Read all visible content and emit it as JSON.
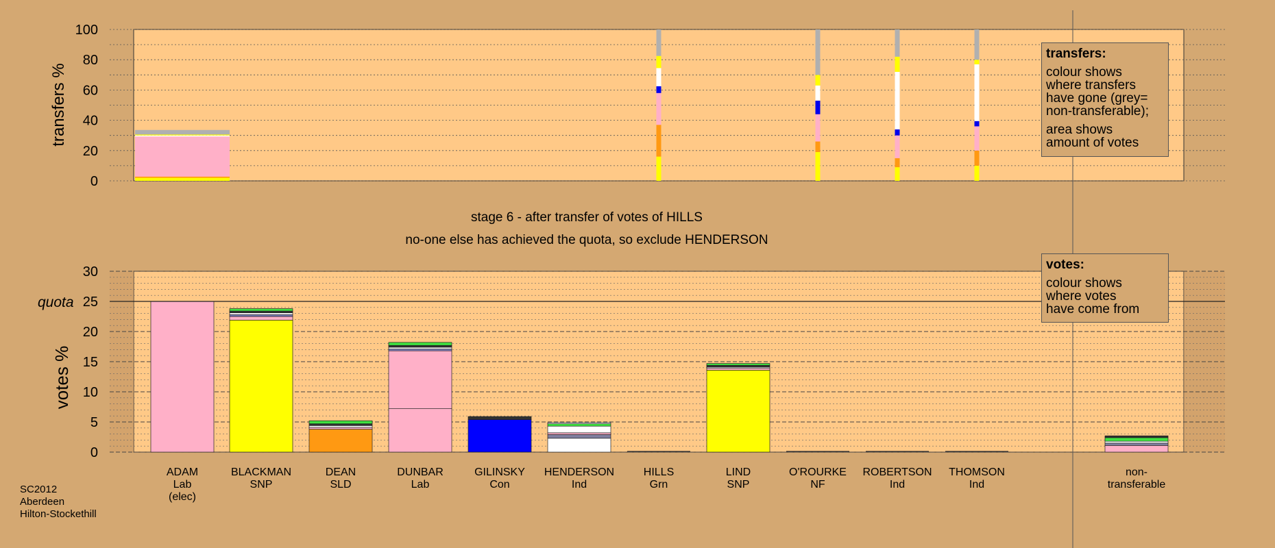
{
  "chart_data": [
    {
      "type": "bar",
      "name": "transfers",
      "ylabel": "transfers %",
      "ylim": [
        0,
        100
      ],
      "yticks": [
        0,
        20,
        40,
        60,
        80,
        100
      ],
      "grid": true,
      "note": "stacked bars; colour shows where transfers have gone",
      "bars": [
        {
          "candidate": "ADAM",
          "segments": [
            {
              "color": "#ffff00",
              "value": 2
            },
            {
              "color": "#ff9912",
              "value": 0.8
            },
            {
              "color": "#ffb0c8",
              "value": 26.5
            },
            {
              "color": "#ffffff",
              "value": 0.7
            },
            {
              "color": "#ffff00",
              "value": 0.6
            },
            {
              "color": "#b0b0b0",
              "value": 3
            }
          ]
        },
        {
          "candidate": "HILLS",
          "segments": [
            {
              "color": "#ffff00",
              "value": 16
            },
            {
              "color": "#ff9912",
              "value": 21
            },
            {
              "color": "#ffb0c8",
              "value": 21
            },
            {
              "color": "#0000ee",
              "value": 4.5
            },
            {
              "color": "#ffffff",
              "value": 12
            },
            {
              "color": "#ffff00",
              "value": 8
            },
            {
              "color": "#b0b0b0",
              "value": 17.5
            }
          ]
        },
        {
          "candidate": "O'ROURKE",
          "segments": [
            {
              "color": "#ffff00",
              "value": 19
            },
            {
              "color": "#ff9912",
              "value": 7
            },
            {
              "color": "#ffb0c8",
              "value": 18
            },
            {
              "color": "#0000ee",
              "value": 9
            },
            {
              "color": "#ffffff",
              "value": 10
            },
            {
              "color": "#ffff00",
              "value": 7
            },
            {
              "color": "#b0b0b0",
              "value": 30
            }
          ]
        },
        {
          "candidate": "ROBERTSON",
          "segments": [
            {
              "color": "#ffff00",
              "value": 9
            },
            {
              "color": "#ff9912",
              "value": 6
            },
            {
              "color": "#ffb0c8",
              "value": 15
            },
            {
              "color": "#0000ee",
              "value": 4
            },
            {
              "color": "#ffffff",
              "value": 38
            },
            {
              "color": "#ffff00",
              "value": 10
            },
            {
              "color": "#b0b0b0",
              "value": 18
            }
          ]
        },
        {
          "candidate": "THOMSON",
          "segments": [
            {
              "color": "#ffff00",
              "value": 10
            },
            {
              "color": "#ff9912",
              "value": 10
            },
            {
              "color": "#ffb0c8",
              "value": 16
            },
            {
              "color": "#0000ee",
              "value": 3.5
            },
            {
              "color": "#ffffff",
              "value": 37.5
            },
            {
              "color": "#ffff00",
              "value": 3
            },
            {
              "color": "#b0b0b0",
              "value": 20
            }
          ]
        }
      ]
    },
    {
      "type": "bar",
      "name": "votes",
      "ylabel": "votes %",
      "ylim": [
        0,
        30
      ],
      "yticks": [
        0,
        5,
        10,
        15,
        20,
        25,
        30
      ],
      "quota": 25,
      "quota_label": "quota",
      "grid": true,
      "note": "stacked bars; colour shows where votes have come from",
      "bars": [
        {
          "candidate": "ADAM",
          "segments": [
            {
              "color": "#ffb0c8",
              "value": 25
            }
          ]
        },
        {
          "candidate": "BLACKMAN",
          "segments": [
            {
              "color": "#ffff00",
              "value": 21.9
            },
            {
              "color": "#ffb0c8",
              "value": 0.6
            },
            {
              "color": "#8080c0",
              "value": 0.3
            },
            {
              "color": "#ffffff",
              "value": 0.3
            },
            {
              "color": "#303030",
              "value": 0.3
            },
            {
              "color": "#40e040",
              "value": 0.4
            }
          ]
        },
        {
          "candidate": "DEAN",
          "segments": [
            {
              "color": "#ff9912",
              "value": 3.8
            },
            {
              "color": "#ffb0c8",
              "value": 0.3
            },
            {
              "color": "#ffffff",
              "value": 0.3
            },
            {
              "color": "#303030",
              "value": 0.3
            },
            {
              "color": "#40e040",
              "value": 0.5
            }
          ]
        },
        {
          "candidate": "DUNBAR",
          "segments": [
            {
              "color": "#ffb0c8",
              "value": 7.2
            },
            {
              "color": "#ffb0c8",
              "value": 9.6
            },
            {
              "color": "#8080c0",
              "value": 0.3
            },
            {
              "color": "#ffffff",
              "value": 0.3
            },
            {
              "color": "#303030",
              "value": 0.3
            },
            {
              "color": "#40e040",
              "value": 0.5
            }
          ]
        },
        {
          "candidate": "GILINSKY",
          "segments": [
            {
              "color": "#0000ff",
              "value": 5.4
            },
            {
              "color": "#303030",
              "value": 0.5
            }
          ]
        },
        {
          "candidate": "HENDERSON",
          "segments": [
            {
              "color": "#ffffff",
              "value": 2.3
            },
            {
              "color": "#8080a0",
              "value": 0.6
            },
            {
              "color": "#ffb0c8",
              "value": 0.3
            },
            {
              "color": "#ffffff",
              "value": 1.1
            },
            {
              "color": "#40e040",
              "value": 0.4
            },
            {
              "color": "#ffffff",
              "value": 0.2
            }
          ]
        },
        {
          "candidate": "HILLS",
          "segments": []
        },
        {
          "candidate": "LIND",
          "segments": [
            {
              "color": "#ffff00",
              "value": 13.6
            },
            {
              "color": "#ffb0c8",
              "value": 0.3
            },
            {
              "color": "#ffffff",
              "value": 0.2
            },
            {
              "color": "#303030",
              "value": 0.3
            },
            {
              "color": "#40e040",
              "value": 0.3
            }
          ]
        },
        {
          "candidate": "O'ROURKE",
          "segments": []
        },
        {
          "candidate": "ROBERTSON",
          "segments": []
        },
        {
          "candidate": "THOMSON",
          "segments": []
        },
        {
          "candidate": "non-transferable",
          "segments": [
            {
              "color": "#ffb0c8",
              "value": 1.1
            },
            {
              "color": "#8080a0",
              "value": 0.4
            },
            {
              "color": "#ffffff",
              "value": 0.3
            },
            {
              "color": "#40e040",
              "value": 0.6
            },
            {
              "color": "#303030",
              "value": 0.3
            }
          ]
        }
      ]
    }
  ],
  "candidates": [
    {
      "name": "ADAM",
      "party": "Lab",
      "extra": "(elec)"
    },
    {
      "name": "BLACKMAN",
      "party": "SNP",
      "extra": ""
    },
    {
      "name": "DEAN",
      "party": "SLD",
      "extra": ""
    },
    {
      "name": "DUNBAR",
      "party": "Lab",
      "extra": ""
    },
    {
      "name": "GILINSKY",
      "party": "Con",
      "extra": ""
    },
    {
      "name": "HENDERSON",
      "party": "Ind",
      "extra": ""
    },
    {
      "name": "HILLS",
      "party": "Grn",
      "extra": ""
    },
    {
      "name": "LIND",
      "party": "SNP",
      "extra": ""
    },
    {
      "name": "O'ROURKE",
      "party": "NF",
      "extra": ""
    },
    {
      "name": "ROBERTSON",
      "party": "Ind",
      "extra": ""
    },
    {
      "name": "THOMSON",
      "party": "Ind",
      "extra": ""
    }
  ],
  "nontransferable_label": [
    "non-",
    "transferable"
  ],
  "stage_text": "stage 6 - after transfer of votes of HILLS",
  "action_text": "no-one else has achieved the quota, so exclude HENDERSON",
  "legend_transfers": {
    "title": "transfers:",
    "line1": "colour shows\nwhere transfers\nhave gone (grey=\nnon-transferable);",
    "line2": "area shows\namount of votes"
  },
  "legend_votes": {
    "title": "votes:",
    "line1": "colour shows\nwhere votes\nhave come from"
  },
  "footer": {
    "election": "SC2012",
    "council": "Aberdeen",
    "ward": "Hilton-Stockethill"
  },
  "colors": {
    "background": "#d4a872",
    "plot_area": "#ffc987"
  }
}
